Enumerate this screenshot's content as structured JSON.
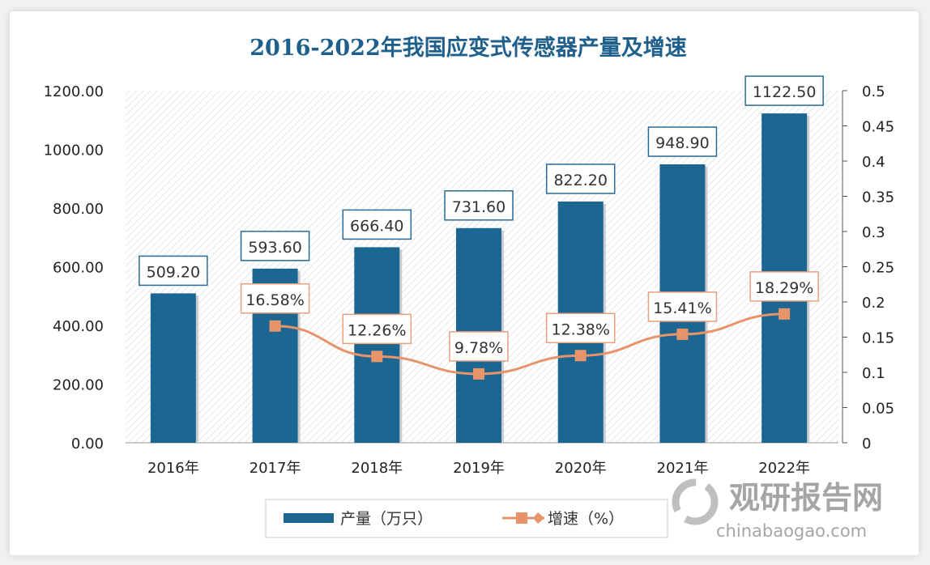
{
  "chart_data": {
    "type": "bar+line",
    "title": "2016-2022年我国应变式传感器产量及增速",
    "categories": [
      "2016年",
      "2017年",
      "2018年",
      "2019年",
      "2020年",
      "2021年",
      "2022年"
    ],
    "series": [
      {
        "name": "产量（万只）",
        "type": "bar",
        "axis": "left",
        "color": "#1b6791",
        "values": [
          509.2,
          593.6,
          666.4,
          731.6,
          822.2,
          948.9,
          1122.5
        ],
        "labels": [
          "509.20",
          "593.60",
          "666.40",
          "731.60",
          "822.20",
          "948.90",
          "1122.50"
        ]
      },
      {
        "name": "增速（%）",
        "type": "line",
        "axis": "right",
        "color": "#e8946a",
        "values": [
          null,
          0.1658,
          0.1226,
          0.0978,
          0.1238,
          0.1541,
          0.1829
        ],
        "labels": [
          "",
          "16.58%",
          "12.26%",
          "9.78%",
          "12.38%",
          "15.41%",
          "18.29%"
        ]
      }
    ],
    "y_left": {
      "range": [
        0,
        1200
      ],
      "ticks": [
        "0.00",
        "200.00",
        "400.00",
        "600.00",
        "800.00",
        "1000.00",
        "1200.00"
      ]
    },
    "y_right": {
      "range": [
        0,
        0.5
      ],
      "ticks": [
        "0",
        "0.05",
        "0.1",
        "0.15",
        "0.2",
        "0.25",
        "0.3",
        "0.35",
        "0.4",
        "0.45",
        "0.5"
      ]
    },
    "legend_position": "bottom",
    "grid": false
  },
  "watermark": {
    "name": "观研报告网",
    "url": "chinabaogao.com"
  }
}
